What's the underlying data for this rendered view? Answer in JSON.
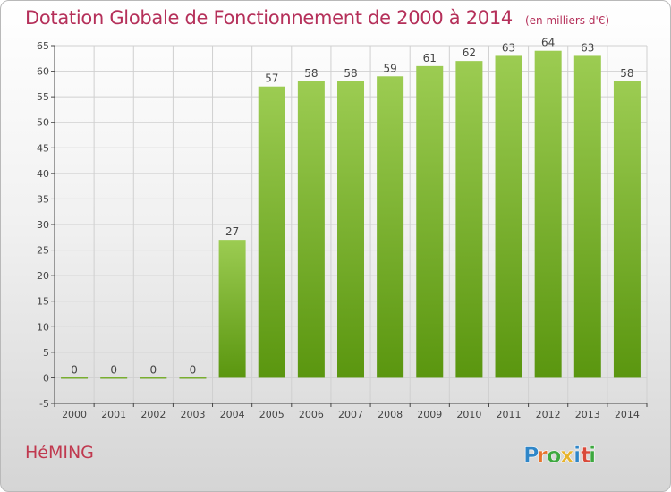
{
  "title": "Dotation Globale de Fonctionnement de 2000 à 2014",
  "unit": "(en milliers d'€)",
  "commune": "HéMING",
  "logo": {
    "letters": [
      "P",
      "r",
      "o",
      "x",
      "i",
      "t",
      "i"
    ],
    "colors": [
      "#2f86c8",
      "#e8732c",
      "#3da83f",
      "#e8b42c",
      "#2f86c8",
      "#d94a3a",
      "#3da83f"
    ]
  },
  "colors": {
    "title": "#b5305a",
    "bar_top": "#9ccc52",
    "bar_bottom": "#5a960f",
    "axis": "#444444",
    "grid": "#d0d0d0"
  },
  "chart_data": {
    "type": "bar",
    "title": "Dotation Globale de Fonctionnement de 2000 à 2014",
    "subtitle": "(en milliers d'€)",
    "categories": [
      "2000",
      "2001",
      "2002",
      "2003",
      "2004",
      "2005",
      "2006",
      "2007",
      "2008",
      "2009",
      "2010",
      "2011",
      "2012",
      "2013",
      "2014"
    ],
    "values": [
      0,
      0,
      0,
      0,
      27,
      57,
      58,
      58,
      59,
      61,
      62,
      63,
      64,
      63,
      58
    ],
    "ylim": [
      -5,
      65
    ],
    "yticks": [
      -5,
      0,
      5,
      10,
      15,
      20,
      25,
      30,
      35,
      40,
      45,
      50,
      55,
      60,
      65
    ],
    "grid": true,
    "xlabel": "",
    "ylabel": ""
  }
}
